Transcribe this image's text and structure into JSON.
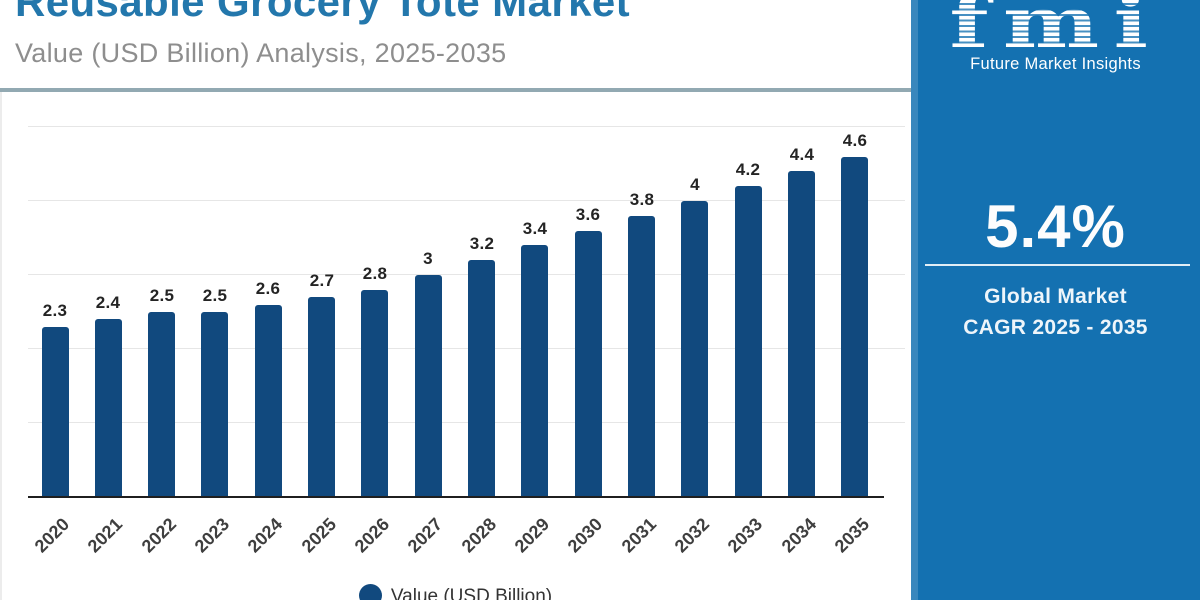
{
  "header": {
    "title": "Reusable Grocery Tote Market",
    "subtitle": "Value (USD Billion) Analysis, 2025-2035"
  },
  "sidebar": {
    "logo_text": "fmi",
    "logo_subtext": "Future Market Insights",
    "cagr_value": "5.4%",
    "cagr_line1": "Global Market",
    "cagr_line2": "CAGR 2025 - 2035"
  },
  "chart_data": {
    "type": "bar",
    "title": "Reusable Grocery Tote Market",
    "subtitle": "Value (USD Billion) Analysis, 2025-2035",
    "categories": [
      "2020",
      "2021",
      "2022",
      "2023",
      "2024",
      "2025",
      "2026",
      "2027",
      "2028",
      "2029",
      "2030",
      "2031",
      "2032",
      "2033",
      "2034",
      "2035"
    ],
    "values": [
      2.3,
      2.4,
      2.5,
      2.5,
      2.6,
      2.7,
      2.8,
      3,
      3.2,
      3.4,
      3.6,
      3.8,
      4,
      4.2,
      4.4,
      4.6
    ],
    "legend_label": "Value (USD Billion)",
    "legend_position": "bottom",
    "xlabel": "",
    "ylabel": "",
    "ylim": [
      0,
      5
    ],
    "gridline_values": [
      1,
      2,
      3,
      4,
      5
    ],
    "grid": "horizontal",
    "bar_color": "#11497e"
  },
  "colors": {
    "title_text": "#2377ac",
    "subtitle_text": "#8e8e8e",
    "bar": "#11497e",
    "sidebar_background": "#1471b1",
    "card_top_border": "#92a9b2"
  }
}
